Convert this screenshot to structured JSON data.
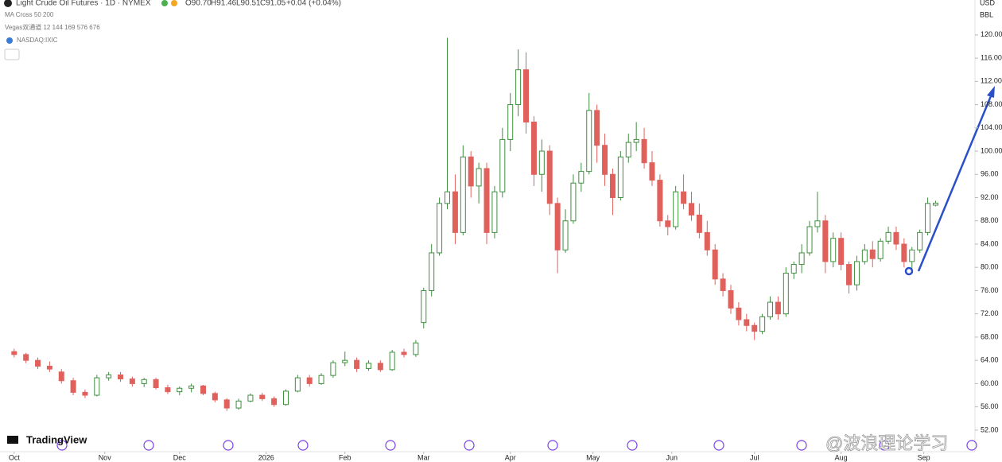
{
  "header": {
    "symbol": "Light Crude Oil Futures · 1D · NYMEX",
    "open": "O90.70",
    "high": "H91.46",
    "low": "L90.51",
    "close": "C91.05",
    "change": "+0.04 (+0.04%)",
    "indicators": [
      "MA Cross 50 200",
      "Vegas双通道 12 144 169 576 676",
      "NASDAQ:IXIC"
    ],
    "currency": "USD",
    "unit": "BBL"
  },
  "brand": "TradingView",
  "watermark": "@波浪理论学习",
  "chart_data": {
    "type": "candlestick",
    "title": "Light Crude Oil Futures · 1D · NYMEX",
    "xlim": [
      -3.6,
      243.8
    ],
    "ylim": [
      48.7,
      126.0
    ],
    "xticks": [
      {
        "value": 0,
        "label": "Oct"
      },
      {
        "value": 23,
        "label": "Nov"
      },
      {
        "value": 42,
        "label": "Dec"
      },
      {
        "value": 64,
        "label": "2026"
      },
      {
        "value": 84,
        "label": "Feb"
      },
      {
        "value": 104,
        "label": "Mar"
      },
      {
        "value": 126,
        "label": "Apr"
      },
      {
        "value": 147,
        "label": "May"
      },
      {
        "value": 167,
        "label": "Jun"
      },
      {
        "value": 188,
        "label": "Jul"
      },
      {
        "value": 210,
        "label": "Aug"
      },
      {
        "value": 231,
        "label": "Sep"
      }
    ],
    "yticks": [
      {
        "value": 52,
        "label": "52.00"
      },
      {
        "value": 56,
        "label": "56.00"
      },
      {
        "value": 60,
        "label": "60.00"
      },
      {
        "value": 64,
        "label": "64.00"
      },
      {
        "value": 68,
        "label": "68.00"
      },
      {
        "value": 72,
        "label": "72.00"
      },
      {
        "value": 76,
        "label": "76.00"
      },
      {
        "value": 80,
        "label": "80.00"
      },
      {
        "value": 84,
        "label": "84.00"
      },
      {
        "value": 88,
        "label": "88.00"
      },
      {
        "value": 92,
        "label": "92.00"
      },
      {
        "value": 96,
        "label": "96.00"
      },
      {
        "value": 100,
        "label": "100.00"
      },
      {
        "value": 104,
        "label": "104.00"
      },
      {
        "value": 108,
        "label": "108.00"
      },
      {
        "value": 112,
        "label": "112.00"
      },
      {
        "value": 116,
        "label": "116.00"
      },
      {
        "value": 120,
        "label": "120.00"
      }
    ],
    "up_color": "#3f8f3f",
    "down_color": "#e0605c",
    "series": [
      {
        "name": "Light Crude Oil Futures",
        "x": [
          0,
          3,
          6,
          9,
          12,
          15,
          18,
          21,
          24,
          27,
          30,
          33,
          36,
          39,
          42,
          45,
          48,
          51,
          54,
          57,
          60,
          63,
          66,
          69,
          72,
          75,
          78,
          81,
          84,
          87,
          90,
          93,
          96,
          99,
          102,
          104,
          106,
          108,
          110,
          112,
          114,
          116,
          118,
          120,
          122,
          124,
          126,
          128,
          130,
          132,
          134,
          136,
          138,
          140,
          142,
          144,
          146,
          148,
          150,
          152,
          154,
          156,
          158,
          160,
          162,
          164,
          166,
          168,
          170,
          172,
          174,
          176,
          178,
          180,
          182,
          184,
          186,
          188,
          190,
          192,
          194,
          196,
          198,
          200,
          202,
          204,
          206,
          208,
          210,
          212,
          214,
          216,
          218,
          220,
          222,
          224,
          226,
          228,
          230,
          232,
          234
        ],
        "open": [
          65.5,
          65,
          64,
          63,
          62,
          60.5,
          58.5,
          58,
          61,
          61.5,
          60.8,
          60,
          60.7,
          59.3,
          58.6,
          59.2,
          59.6,
          58.3,
          57.2,
          55.8,
          57,
          58,
          57.4,
          56.4,
          58.7,
          61,
          60,
          61.4,
          63.6,
          64,
          62.6,
          63.5,
          62.4,
          65.4,
          65,
          70.5,
          76,
          82.5,
          91,
          93,
          86,
          99,
          94,
          97,
          86,
          93,
          102,
          108,
          114,
          105,
          96,
          100,
          91,
          83,
          88,
          94.5,
          96.5,
          107,
          101,
          96,
          92,
          99,
          101.5,
          102,
          98,
          95,
          88,
          87,
          93,
          91,
          89,
          86,
          83,
          78,
          76,
          73,
          71,
          70,
          69,
          71.5,
          74,
          72,
          79,
          80.5,
          82.5,
          87,
          88,
          81,
          85,
          80.5,
          77,
          81,
          83,
          81.5,
          84.5,
          86,
          84,
          81,
          83,
          86,
          90.7
        ],
        "high": [
          66,
          65.3,
          64.5,
          63.8,
          62.5,
          61,
          59,
          61.5,
          62,
          62,
          61.2,
          61,
          61,
          59.8,
          59.5,
          60,
          59.8,
          58.6,
          57.5,
          57.4,
          58.3,
          58.4,
          57.8,
          59,
          61.5,
          61.5,
          61.8,
          64,
          65.5,
          64.5,
          64,
          64,
          65.8,
          66,
          67.5,
          76.5,
          84,
          92,
          119.5,
          96,
          101,
          100,
          98,
          98,
          94,
          104,
          110,
          117.5,
          117,
          106,
          102,
          101,
          92,
          90,
          96,
          98,
          110,
          108,
          103,
          97,
          100,
          103,
          105,
          104,
          100,
          96,
          89,
          94,
          96,
          93,
          91,
          88,
          84,
          79,
          77,
          74,
          72,
          70.5,
          72,
          75,
          75,
          80,
          81,
          84,
          88,
          93,
          89,
          86,
          86,
          81,
          82,
          84,
          84.5,
          85,
          87,
          87,
          85,
          83.5,
          86.5,
          92,
          91.46
        ],
        "low": [
          64.5,
          63.5,
          62.5,
          62,
          60,
          58,
          57.5,
          57.8,
          60.5,
          60.3,
          59.5,
          59.4,
          59,
          58.2,
          58,
          58.5,
          58,
          56.8,
          55.3,
          55.5,
          56.8,
          57,
          56,
          56.2,
          58.5,
          59.5,
          59.8,
          61,
          63,
          62,
          62.2,
          62,
          62.2,
          64.5,
          64.6,
          69.5,
          75,
          82,
          90,
          84,
          85.5,
          92,
          91,
          84,
          85,
          92,
          100,
          106,
          103,
          94,
          93,
          89,
          79,
          82.5,
          87.5,
          93,
          96,
          98,
          94,
          89,
          91.5,
          98,
          100,
          97,
          94,
          87,
          85.5,
          86.5,
          90,
          88,
          85,
          82,
          77,
          75,
          72,
          70,
          69,
          67.5,
          68.5,
          71,
          71,
          71.5,
          78,
          79,
          82,
          86,
          79,
          80,
          79.5,
          75.5,
          76,
          80.5,
          80,
          81,
          84,
          83,
          80,
          79.5,
          82.5,
          85.5,
          90.51
        ],
        "close": [
          65,
          64,
          63,
          62.5,
          60.5,
          58.5,
          58,
          61,
          61.5,
          60.8,
          60,
          60.7,
          59.3,
          58.6,
          59.2,
          59.6,
          58.3,
          57.2,
          55.8,
          57,
          58,
          57.4,
          56.4,
          58.7,
          61,
          60,
          61.4,
          63.6,
          64,
          62.6,
          63.5,
          62.4,
          65.4,
          65,
          67,
          76,
          82.5,
          91,
          93,
          86,
          99,
          94,
          97,
          86,
          93,
          102,
          108,
          114,
          105,
          96,
          100,
          91,
          83,
          88,
          94.5,
          96.5,
          107,
          101,
          96,
          92,
          99,
          101.5,
          102,
          98,
          95,
          88,
          87,
          93,
          91,
          89,
          86,
          83,
          78,
          76,
          73,
          71,
          70,
          69,
          71.5,
          74,
          72,
          79,
          80.5,
          82.5,
          87,
          88,
          81,
          85,
          80.5,
          77,
          81,
          83,
          81.5,
          84.5,
          86,
          84,
          81,
          83,
          86,
          91,
          91.05
        ]
      }
    ]
  }
}
